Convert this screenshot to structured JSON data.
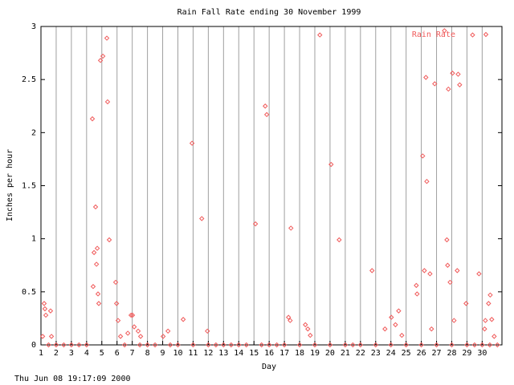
{
  "chart_data": {
    "type": "scatter",
    "title": "Rain Fall Rate ending 30 November 1999",
    "x_label": "Day",
    "y_label": "Inches per hour",
    "footer": "Thu Jun 08 19:17:09 2000",
    "xlim": [
      1,
      31.3
    ],
    "ylim": [
      0,
      3
    ],
    "xticks": [
      1,
      2,
      3,
      4,
      5,
      6,
      7,
      8,
      9,
      10,
      11,
      12,
      13,
      14,
      15,
      16,
      17,
      18,
      19,
      20,
      21,
      22,
      23,
      24,
      25,
      26,
      27,
      28,
      29,
      30
    ],
    "yticks": [
      0,
      0.5,
      1,
      1.5,
      2,
      2.5,
      3
    ],
    "grid": true,
    "legend": "top-right",
    "x": [
      1.11,
      1.21,
      1.26,
      1.32,
      1.63,
      1.69,
      4.38,
      4.43,
      4.49,
      4.59,
      4.65,
      4.7,
      4.75,
      4.8,
      4.91,
      5.07,
      5.33,
      5.38,
      5.49,
      5.91,
      5.97,
      6.07,
      6.23,
      6.71,
      6.92,
      7.02,
      7.13,
      7.39,
      7.55,
      9.03,
      9.35,
      10.35,
      10.93,
      11.57,
      11.94,
      15.1,
      15.74,
      15.84,
      17.27,
      17.38,
      17.43,
      18.38,
      18.54,
      18.7,
      19.33,
      20.07,
      20.6,
      22.76,
      23.61,
      24.03,
      24.3,
      24.51,
      24.72,
      25.67,
      25.72,
      26.09,
      26.2,
      26.3,
      26.36,
      26.57,
      26.67,
      26.88,
      27.52,
      27.68,
      27.73,
      27.78,
      27.89,
      28.05,
      28.15,
      28.36,
      28.42,
      28.52,
      28.94,
      29.37,
      29.79,
      30.16,
      30.21,
      30.42,
      30.53,
      30.63,
      30.79,
      1.5,
      2,
      2.5,
      3,
      3.5,
      4,
      6.5,
      7.5,
      8,
      8.5,
      9.5,
      10,
      11,
      12,
      12.5,
      13,
      13.5,
      14,
      14.5,
      15.5,
      16,
      16.5,
      17,
      18,
      19,
      20,
      21,
      21.5,
      22,
      23,
      24,
      25,
      26,
      27,
      28,
      29,
      29.5,
      30,
      30.5,
      31
    ],
    "series": [
      {
        "name": "Rain Rate",
        "color": "#f05a5a",
        "values": [
          0.08,
          0.39,
          0.34,
          0.28,
          0.32,
          0.08,
          2.13,
          0.55,
          0.87,
          1.3,
          0.76,
          0.91,
          0.48,
          0.39,
          2.68,
          2.72,
          2.89,
          2.29,
          0.99,
          0.59,
          0.39,
          0.23,
          0.08,
          0.11,
          0.28,
          0.28,
          0.17,
          0.13,
          0.08,
          0.08,
          0.13,
          0.24,
          1.9,
          1.19,
          0.13,
          1.14,
          2.25,
          2.17,
          0.26,
          0.23,
          1.1,
          0.19,
          0.15,
          0.09,
          2.92,
          1.7,
          0.99,
          0.7,
          0.15,
          0.26,
          0.19,
          0.32,
          0.09,
          0.56,
          0.48,
          1.78,
          0.7,
          2.52,
          1.54,
          0.67,
          0.15,
          2.46,
          2.96,
          0.99,
          0.75,
          2.41,
          0.59,
          2.56,
          0.23,
          0.7,
          2.55,
          2.45,
          0.39,
          2.92,
          0.67,
          0.15,
          0.23,
          0.39,
          0.47,
          0.24,
          0.08,
          0,
          0,
          0,
          0,
          0,
          0,
          0,
          0,
          0,
          0,
          0,
          0,
          0,
          0,
          0,
          0,
          0,
          0,
          0,
          0,
          0,
          0,
          0,
          0,
          0,
          0,
          0,
          0,
          0,
          0,
          0,
          0,
          0,
          0,
          0,
          0,
          0,
          0,
          0,
          0
        ]
      }
    ]
  }
}
